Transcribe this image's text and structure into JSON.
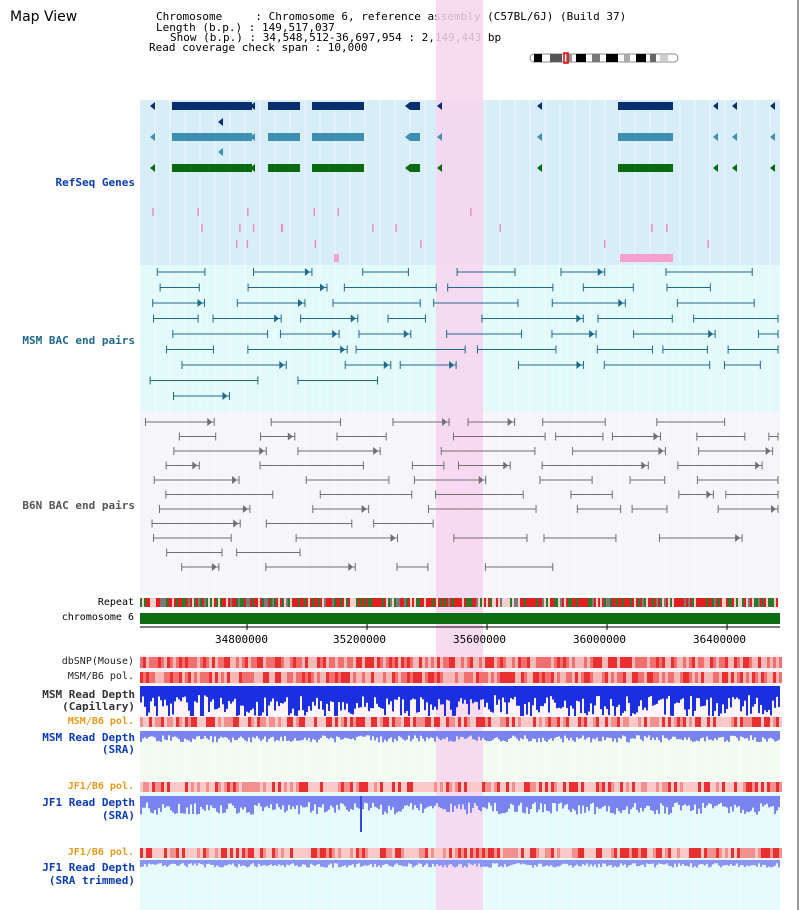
{
  "title": "Map View",
  "info": {
    "chromosome": "Chromosome     : Chromosome 6, reference assembly (C57BL/6J) (Build 37)",
    "length": "Length (b.p.) : 149,517,037",
    "show": "Show (b.p.) : 34,548,512-36,697,954 : 2,149,443 bp",
    "coverage": "Read coverage check span : 10,000"
  },
  "tracks": {
    "refseq": "RefSeq Genes",
    "msm_bac": "MSM BAC end pairs",
    "b6n_bac": "B6N BAC end pairs",
    "repeat": "Repeat",
    "chromosome": "chromosome 6",
    "dbsnp": "dbSNP(Mouse)",
    "msm_b6_pol_1": "MSM/B6 pol.",
    "msm_read_depth_cap": "MSM Read Depth",
    "capillary": "(Capillary)",
    "msm_b6_pol_2": "MSM/B6 pol.",
    "msm_read_depth_sra": "MSM Read Depth",
    "sra_1": "(SRA)",
    "jf1_b6_pol_1": "JF1/B6 pol.",
    "jf1_read_depth": "JF1 Read Depth",
    "sra_2": "(SRA)",
    "jf1_b6_pol_2": "JF1/B6 pol.",
    "jf1_read_depth_trim": "JF1 Read Depth",
    "sra_trimmed": "(SRA trimmed)"
  },
  "axis": {
    "ticks": [
      "34800000",
      "35200000",
      "35600000",
      "36000000",
      "36400000"
    ]
  },
  "colors": {
    "highlight": "#f7d5ee",
    "refseq_bg": "#d7eef8",
    "msm_bg": "#e3fafa",
    "b6n_bg": "#f5f5fa",
    "gene_dark": "#0a2f6e",
    "gene_mid": "#3f8fb0",
    "gene_green": "#0b6a10",
    "msm_pair": "#1f6a8c",
    "b6n_pair": "#707070",
    "label_blue": "#0a3cb4",
    "label_teal": "#1f6a8c",
    "label_orange": "#e89a1a",
    "chrom_green": "#0d6b12"
  }
}
